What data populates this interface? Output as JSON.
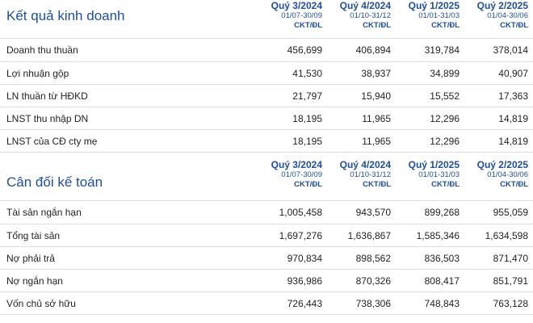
{
  "income": {
    "title": "Kết quả kinh doanh",
    "periods": [
      {
        "quarter": "Quý 3/2024",
        "dates": "01/07-30/09",
        "unit": "CKT/ĐL"
      },
      {
        "quarter": "Quý 4/2024",
        "dates": "01/10-31/12",
        "unit": "CKT/ĐL"
      },
      {
        "quarter": "Quý 1/2025",
        "dates": "01/01-31/03",
        "unit": "CKT/ĐL"
      },
      {
        "quarter": "Quý 2/2025",
        "dates": "01/04-30/06",
        "unit": "CKT/ĐL"
      }
    ],
    "rows": [
      {
        "label": "Doanh thu thuần",
        "values": [
          "456,699",
          "406,894",
          "319,784",
          "378,014"
        ]
      },
      {
        "label": "Lợi nhuận gộp",
        "values": [
          "41,530",
          "38,937",
          "34,899",
          "40,907"
        ]
      },
      {
        "label": "LN thuần từ HĐKD",
        "values": [
          "21,797",
          "15,940",
          "15,552",
          "17,363"
        ]
      },
      {
        "label": "LNST thu nhập DN",
        "values": [
          "18,195",
          "11,965",
          "12,296",
          "14,819"
        ]
      },
      {
        "label": "LNST của CĐ cty mẹ",
        "values": [
          "18,195",
          "11,965",
          "12,296",
          "14,819"
        ]
      }
    ]
  },
  "balance": {
    "title": "Cân đối kế toán",
    "periods": [
      {
        "quarter": "Quý 3/2024",
        "dates": "01/07-30/09",
        "unit": "CKT/ĐL"
      },
      {
        "quarter": "Quý 4/2024",
        "dates": "01/10-31/12",
        "unit": "CKT/ĐL"
      },
      {
        "quarter": "Quý 1/2025",
        "dates": "01/01-31/03",
        "unit": "CKT/ĐL"
      },
      {
        "quarter": "Quý 2/2025",
        "dates": "01/04-30/06",
        "unit": "CKT/ĐL"
      }
    ],
    "rows": [
      {
        "label": "Tài sản ngắn hạn",
        "values": [
          "1,005,458",
          "943,570",
          "899,268",
          "955,059"
        ]
      },
      {
        "label": "Tổng tài sản",
        "values": [
          "1,697,276",
          "1,636,867",
          "1,585,346",
          "1,634,598"
        ]
      },
      {
        "label": "Nợ phải trả",
        "values": [
          "970,834",
          "898,562",
          "836,503",
          "871,470"
        ]
      },
      {
        "label": "Nợ ngắn hạn",
        "values": [
          "936,986",
          "870,326",
          "808,417",
          "851,791"
        ]
      },
      {
        "label": "Vốn chủ sở hữu",
        "values": [
          "726,443",
          "738,306",
          "748,843",
          "763,128"
        ]
      }
    ]
  }
}
